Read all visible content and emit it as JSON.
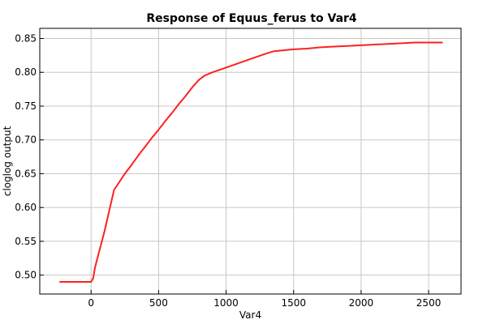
{
  "chart_data": {
    "type": "line",
    "title": "Response of Equus_ferus to Var4",
    "xlabel": "Var4",
    "ylabel": "cloglog output",
    "xlim": [
      -380,
      2740
    ],
    "ylim": [
      0.472,
      0.865
    ],
    "x_ticks": [
      0,
      500,
      1000,
      1500,
      2000,
      2500
    ],
    "x_tick_labels": [
      "0",
      "500",
      "1000",
      "1500",
      "2000",
      "2500"
    ],
    "y_ticks": [
      0.5,
      0.55,
      0.6,
      0.65,
      0.7,
      0.75,
      0.8,
      0.85
    ],
    "y_tick_labels": [
      "0.50",
      "0.55",
      "0.60",
      "0.65",
      "0.70",
      "0.75",
      "0.80",
      "0.85"
    ],
    "grid": true,
    "series": [
      {
        "color": "#ff2020",
        "x": [
          -230,
          0,
          15,
          30,
          60,
          100,
          140,
          170,
          200,
          250,
          300,
          350,
          400,
          450,
          500,
          550,
          600,
          650,
          700,
          750,
          800,
          840,
          900,
          1000,
          1100,
          1200,
          1300,
          1350,
          1400,
          1500,
          1600,
          1700,
          1800,
          1900,
          2000,
          2100,
          2200,
          2300,
          2400,
          2500,
          2600
        ],
        "y": [
          0.49,
          0.49,
          0.495,
          0.512,
          0.535,
          0.565,
          0.6,
          0.626,
          0.635,
          0.65,
          0.663,
          0.677,
          0.69,
          0.703,
          0.715,
          0.728,
          0.74,
          0.753,
          0.765,
          0.778,
          0.789,
          0.795,
          0.8,
          0.807,
          0.814,
          0.821,
          0.828,
          0.831,
          0.832,
          0.834,
          0.835,
          0.837,
          0.838,
          0.839,
          0.84,
          0.841,
          0.842,
          0.843,
          0.844,
          0.844,
          0.844
        ]
      }
    ]
  }
}
